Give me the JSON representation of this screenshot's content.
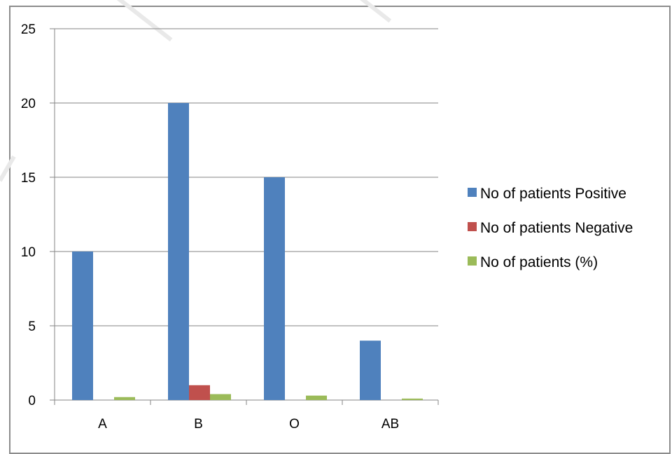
{
  "chart_data": {
    "type": "bar",
    "title": "",
    "xlabel": "",
    "ylabel": "",
    "categories": [
      "A",
      "B",
      "O",
      "AB"
    ],
    "ylim": [
      0,
      25
    ],
    "yticks": [
      0,
      5,
      10,
      15,
      20,
      25
    ],
    "grid": true,
    "legend_position": "right",
    "series": [
      {
        "name": "No of patients Positive",
        "values": [
          10,
          20,
          15,
          4
        ],
        "color": "#4f81bd"
      },
      {
        "name": "No of patients Negative",
        "values": [
          0,
          1,
          0,
          0
        ],
        "color": "#c0504d"
      },
      {
        "name": "No of patients (%)",
        "values": [
          0.2,
          0.4,
          0.3,
          0.1
        ],
        "color": "#9bbb59"
      }
    ]
  }
}
